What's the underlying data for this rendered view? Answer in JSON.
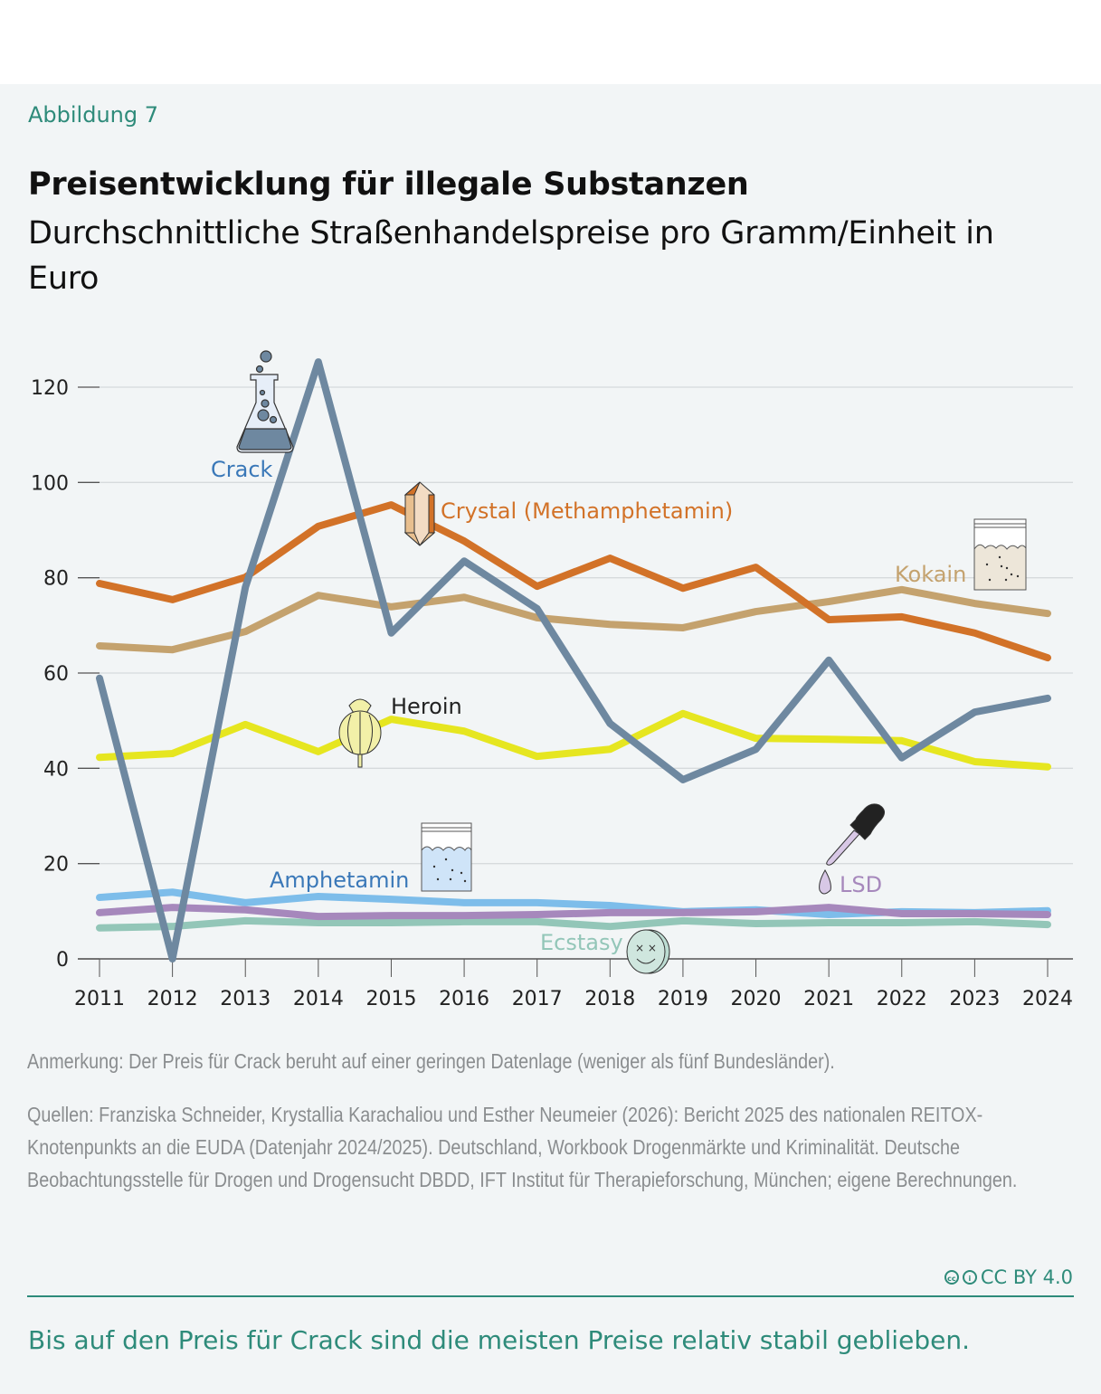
{
  "header": {
    "figure_label": "Abbildung 7",
    "title": "Preisentwicklung für illegale Substanzen",
    "subtitle": "Durchschnittliche Straßenhandelspreise pro Gramm/Einheit in Euro"
  },
  "chart_data": {
    "type": "line",
    "title": "Preisentwicklung für illegale Substanzen",
    "subtitle": "Durchschnittliche Straßenhandelspreise pro Gramm/Einheit in Euro",
    "xlabel": "",
    "ylabel": "",
    "x": [
      2011,
      2012,
      2013,
      2014,
      2015,
      2016,
      2017,
      2018,
      2019,
      2020,
      2021,
      2022,
      2023,
      2024
    ],
    "ylim": [
      0,
      120
    ],
    "yticks": [
      0,
      20,
      40,
      60,
      80,
      100,
      120
    ],
    "grid": true,
    "legend": "inline labels",
    "series": [
      {
        "name": "Crack",
        "color": "#6e88a0",
        "label_color": "#3a78b8",
        "icon": "flask-icon",
        "values": [
          58.9,
          0,
          78,
          125.3,
          68.4,
          83.5,
          73.5,
          49.4,
          37.6,
          44,
          62.7,
          42.2,
          51.8,
          54.7
        ]
      },
      {
        "name": "Crystal (Methamphetamin)",
        "color": "#d27228",
        "label_color": "#d27228",
        "icon": "crystal-icon",
        "values": [
          78.8,
          75.4,
          80.1,
          90.8,
          95.3,
          87.7,
          78.2,
          84.1,
          77.8,
          82.2,
          71.2,
          71.8,
          68.4,
          63.2
        ]
      },
      {
        "name": "Kokain",
        "color": "#c4a26e",
        "label_color": "#c4a26e",
        "icon": "powder-bag-icon",
        "values": [
          65.7,
          64.9,
          68.7,
          76.3,
          73.9,
          75.9,
          71.6,
          70.2,
          69.5,
          72.9,
          75,
          77.5,
          74.6,
          72.5
        ]
      },
      {
        "name": "Heroin",
        "color": "#e6e620",
        "label_color": "#222222",
        "icon": "poppy-icon",
        "values": [
          42.3,
          43.1,
          49.2,
          43.5,
          50.3,
          47.8,
          42.5,
          44,
          51.5,
          46.3,
          46.1,
          45.8,
          41.4,
          40.3
        ]
      },
      {
        "name": "Amphetamin",
        "color": "#7dbdea",
        "label_color": "#3a78b8",
        "icon": "powder-bag-blue-icon",
        "values": [
          12.9,
          14,
          11.8,
          13.1,
          12.5,
          11.8,
          11.8,
          11.2,
          9.9,
          10.3,
          9.3,
          9.9,
          9.7,
          10.1
        ]
      },
      {
        "name": "LSD",
        "color": "#a688bc",
        "label_color": "#a688bc",
        "icon": "dropper-icon",
        "values": [
          9.7,
          10.8,
          10.3,
          8.9,
          9.1,
          9.1,
          9.3,
          9.7,
          9.7,
          9.9,
          10.8,
          9.5,
          9.5,
          9.3
        ]
      },
      {
        "name": "Ecstasy",
        "color": "#93c6b8",
        "label_color": "#93c6b8",
        "icon": "pill-icon",
        "values": [
          6.5,
          6.8,
          8,
          7.6,
          7.6,
          7.8,
          7.8,
          6.8,
          8,
          7.4,
          7.6,
          7.6,
          7.8,
          7.2
        ]
      }
    ]
  },
  "notes": {
    "remark": "Anmerkung: Der Preis für Crack beruht auf einer geringen Datenlage (weniger als fünf Bundesländer).",
    "sources": "Quellen: Franziska Schneider, Krystallia Karachaliou und Esther Neumeier (2026): Bericht 2025 des nationalen REITOX-Knotenpunkts an die EUDA (Datenjahr 2024/2025). Deutschland, Workbook Drogenmärkte und Kriminalität. Deutsche Beobachtungsstelle für Drogen und Drogensucht DBDD, IFT Institut für Therapieforschung, München; eigene Berechnungen."
  },
  "license": {
    "text": "CC BY 4.0",
    "icons": [
      "cc-icon",
      "by-icon"
    ]
  },
  "takeaway": "Bis auf den Preis für Crack sind die meisten Preise relativ stabil geblieben."
}
